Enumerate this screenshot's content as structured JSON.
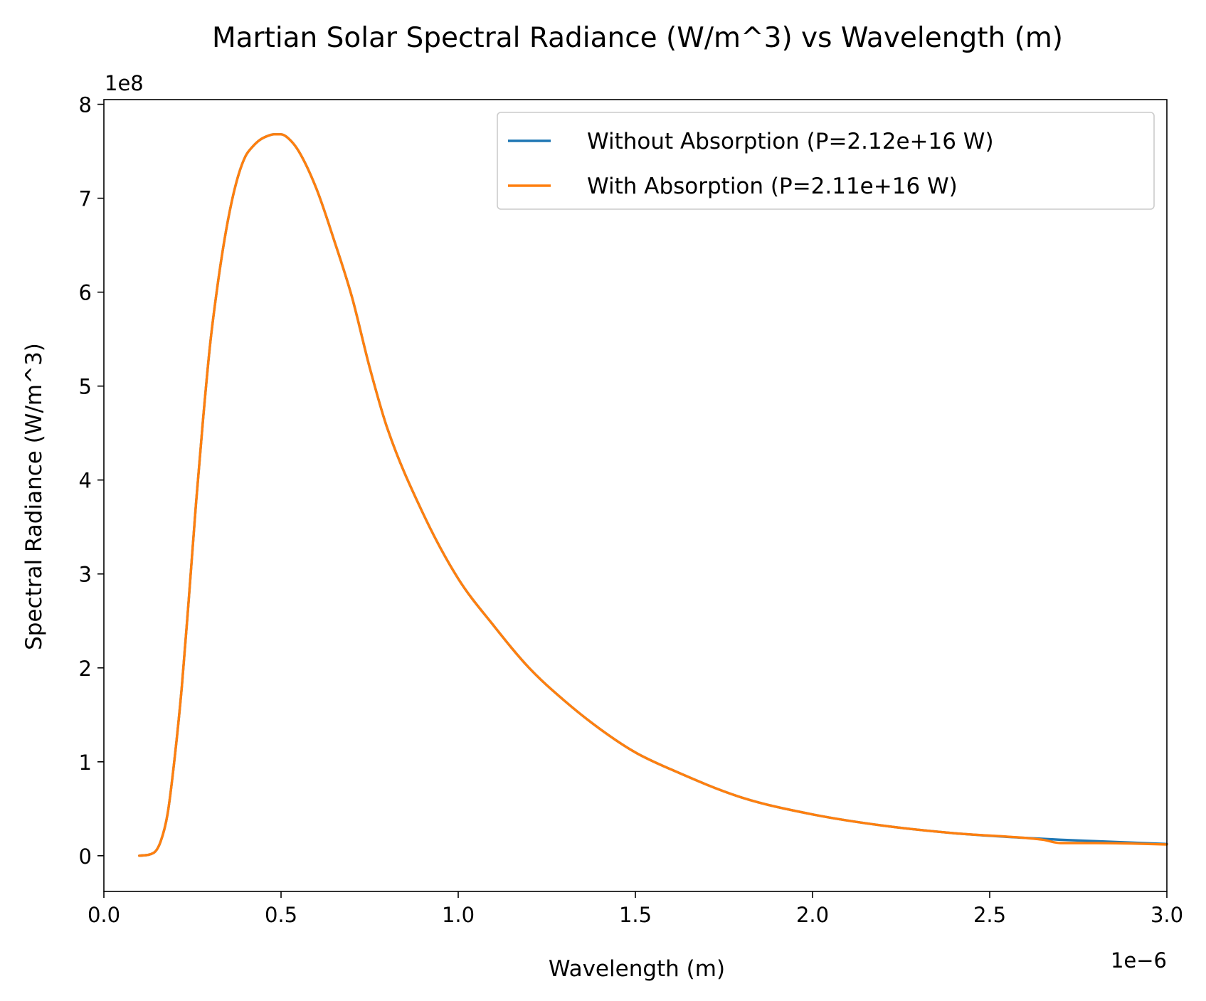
{
  "chart_data": {
    "type": "line",
    "title": "Martian Solar Spectral Radiance (W/m^3) vs Wavelength (m)",
    "xlabel": "Wavelength (m)",
    "ylabel": "Spectral Radiance (W/m^3)",
    "x_offset_label": "1e−6",
    "y_offset_label": "1e8",
    "xlim": [
      0.0,
      3.0
    ],
    "ylim": [
      -0.38,
      8.05
    ],
    "x_scale_factor": 1e-06,
    "y_scale_factor": 100000000.0,
    "xticks": [
      0.0,
      0.5,
      1.0,
      1.5,
      2.0,
      2.5,
      3.0
    ],
    "xtick_labels": [
      "0.0",
      "0.5",
      "1.0",
      "1.5",
      "2.0",
      "2.5",
      "3.0"
    ],
    "yticks": [
      0,
      1,
      2,
      3,
      4,
      5,
      6,
      7,
      8
    ],
    "ytick_labels": [
      "0",
      "1",
      "2",
      "3",
      "4",
      "5",
      "6",
      "7",
      "8"
    ],
    "grid": false,
    "legend_position": "top-right",
    "series": [
      {
        "name": "Without Absorption (P=2.12e+16 W)",
        "color": "#1f77b4",
        "x": [
          0.1,
          0.14,
          0.16,
          0.18,
          0.2,
          0.22,
          0.24,
          0.26,
          0.28,
          0.3,
          0.32,
          0.34,
          0.36,
          0.38,
          0.4,
          0.42,
          0.44,
          0.46,
          0.48,
          0.5,
          0.52,
          0.55,
          0.6,
          0.65,
          0.7,
          0.75,
          0.8,
          0.9,
          1.0,
          1.1,
          1.2,
          1.3,
          1.4,
          1.5,
          1.6,
          1.8,
          2.0,
          2.2,
          2.4,
          2.6,
          2.7,
          2.8,
          3.0
        ],
        "y": [
          0.0,
          0.03,
          0.15,
          0.45,
          1.05,
          1.8,
          2.75,
          3.75,
          4.65,
          5.45,
          6.05,
          6.55,
          6.95,
          7.25,
          7.45,
          7.55,
          7.62,
          7.66,
          7.68,
          7.68,
          7.64,
          7.5,
          7.1,
          6.55,
          5.95,
          5.2,
          4.55,
          3.65,
          2.95,
          2.45,
          2.0,
          1.65,
          1.35,
          1.1,
          0.92,
          0.62,
          0.44,
          0.32,
          0.24,
          0.19,
          0.17,
          0.155,
          0.125
        ]
      },
      {
        "name": "With Absorption (P=2.11e+16 W)",
        "color": "#ff7f0e",
        "x": [
          0.1,
          0.14,
          0.16,
          0.18,
          0.2,
          0.22,
          0.24,
          0.26,
          0.28,
          0.3,
          0.32,
          0.34,
          0.36,
          0.38,
          0.4,
          0.42,
          0.44,
          0.46,
          0.48,
          0.5,
          0.52,
          0.55,
          0.6,
          0.65,
          0.7,
          0.75,
          0.8,
          0.9,
          1.0,
          1.1,
          1.2,
          1.3,
          1.4,
          1.5,
          1.6,
          1.8,
          2.0,
          2.2,
          2.4,
          2.6,
          2.65,
          2.7,
          2.8,
          2.9,
          3.0
        ],
        "y": [
          0.0,
          0.03,
          0.15,
          0.45,
          1.05,
          1.8,
          2.75,
          3.75,
          4.65,
          5.45,
          6.05,
          6.55,
          6.95,
          7.25,
          7.45,
          7.55,
          7.62,
          7.66,
          7.68,
          7.68,
          7.64,
          7.5,
          7.1,
          6.55,
          5.95,
          5.2,
          4.55,
          3.65,
          2.95,
          2.45,
          2.0,
          1.65,
          1.35,
          1.1,
          0.92,
          0.62,
          0.44,
          0.32,
          0.24,
          0.19,
          0.17,
          0.135,
          0.135,
          0.13,
          0.12
        ]
      }
    ]
  }
}
